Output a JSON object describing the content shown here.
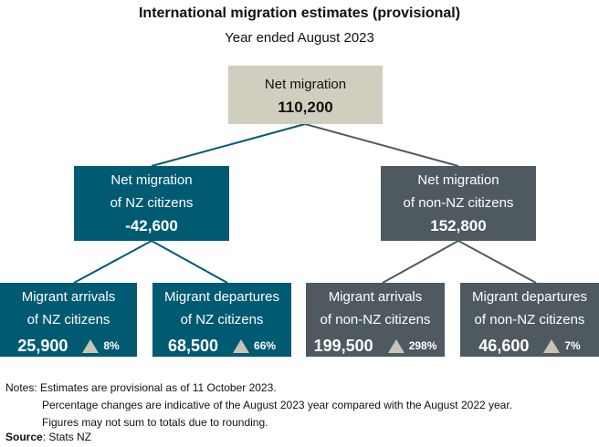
{
  "title": "International migration estimates (provisional)",
  "subtitle": "Year ended August 2023",
  "colors": {
    "nz": "#005a72",
    "non_nz": "#4e5a60",
    "total": "#d0cebf",
    "triangle": "#c8c5b4"
  },
  "total": {
    "line1": "Net migration",
    "value": "110,200"
  },
  "nz": {
    "line1": "Net migration",
    "line2": "of NZ citizens",
    "value": "-42,600"
  },
  "non_nz": {
    "line1": "Net migration",
    "line2": "of non-NZ citizens",
    "value": "152,800"
  },
  "leaves": [
    {
      "line1": "Migrant arrivals",
      "line2": "of NZ citizens",
      "value": "25,900",
      "change": "8%",
      "direction": "up-triangle-icon"
    },
    {
      "line1": "Migrant departures",
      "line2": "of NZ citizens",
      "value": "68,500",
      "change": "66%",
      "direction": "up-triangle-icon"
    },
    {
      "line1": "Migrant arrivals",
      "line2": "of non-NZ citizens",
      "value": "199,500",
      "change": "298%",
      "direction": "up-triangle-icon"
    },
    {
      "line1": "Migrant departures",
      "line2": "of non-NZ citizens",
      "value": "46,600",
      "change": "7%",
      "direction": "up-triangle-icon"
    }
  ],
  "notes": {
    "line1": "Notes: Estimates are provisional as of 11 October 2023.",
    "line2": "Percentage changes are indicative of the August 2023 year compared with the August 2022 year.",
    "line3": "Figures may not sum to totals due to rounding."
  },
  "source": {
    "label": "Source",
    "text": ": Stats NZ"
  }
}
